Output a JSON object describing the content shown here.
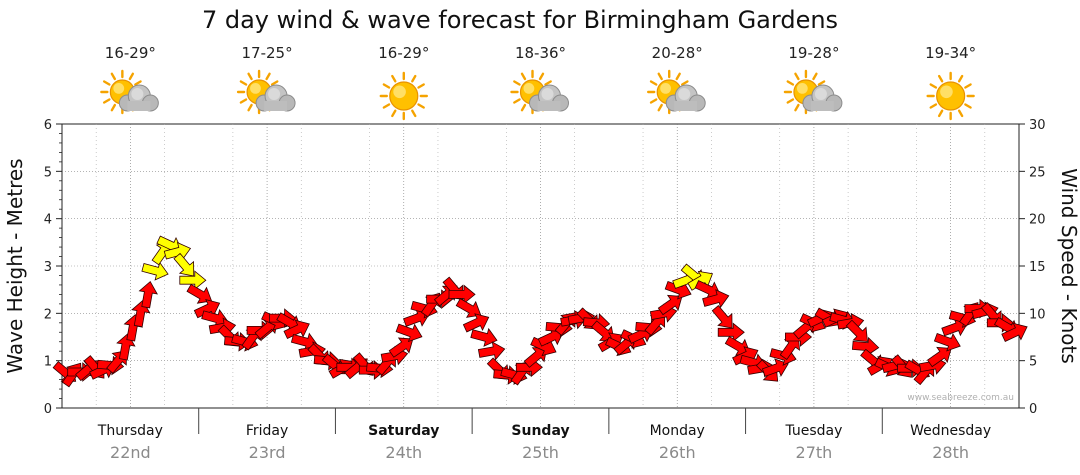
{
  "chart_data": {
    "type": "scatter",
    "title": "7 day wind & wave forecast for Birmingham Gardens",
    "ylabel_left": "Wave Height - Metres",
    "ylabel_right": "Wind Speed - Knots",
    "ylim_left": [
      0,
      6
    ],
    "ylim_right": [
      0,
      30
    ],
    "left_ticks": [
      "0",
      "1",
      "2",
      "3",
      "4",
      "5",
      "6"
    ],
    "right_ticks": [
      "0",
      "5",
      "10",
      "15",
      "20",
      "25",
      "30"
    ],
    "grid": true,
    "watermark": "www.seabreeze.com.au",
    "days": [
      {
        "name": "Thursday",
        "date": "22nd",
        "temp": "16-29°",
        "icon": "partly-cloudy-icon",
        "bold": false
      },
      {
        "name": "Friday",
        "date": "23rd",
        "temp": "17-25°",
        "icon": "partly-cloudy-icon",
        "bold": false
      },
      {
        "name": "Saturday",
        "date": "24th",
        "temp": "16-29°",
        "icon": "sunny-icon",
        "bold": true
      },
      {
        "name": "Sunday",
        "date": "25th",
        "temp": "18-36°",
        "icon": "partly-cloudy-icon",
        "bold": true
      },
      {
        "name": "Monday",
        "date": "26th",
        "temp": "20-28°",
        "icon": "partly-cloudy-icon",
        "bold": false
      },
      {
        "name": "Tuesday",
        "date": "27th",
        "temp": "19-28°",
        "icon": "partly-cloudy-icon",
        "bold": false
      },
      {
        "name": "Wednesday",
        "date": "28th",
        "temp": "19-34°",
        "icon": "sunny-icon",
        "bold": false
      }
    ],
    "arrow_colors": {
      "strong": "#ff0000",
      "moderate": "#ffff00"
    },
    "yellow_threshold_knots": 13,
    "wind_knots": [
      3.7,
      3.6,
      3.8,
      4.1,
      4.2,
      4.0,
      4.5,
      5.0,
      6.5,
      8.5,
      10,
      12,
      14.5,
      16.5,
      17.2,
      16.5,
      15,
      13.5,
      12,
      10.5,
      9.5,
      8.5,
      7.5,
      7.0,
      7.0,
      7.5,
      8.2,
      8.5,
      9.2,
      9.5,
      9.0,
      8.3,
      7.0,
      6.0,
      5.5,
      5.0,
      4.5,
      4.2,
      4.3,
      4.3,
      4.5,
      4.0,
      4.2,
      4.8,
      5.5,
      6.5,
      8.0,
      9.5,
      10.5,
      11.0,
      11.5,
      12.0,
      12.5,
      12.0,
      10.5,
      9.0,
      7.5,
      6.0,
      4.0,
      3.5,
      3.5,
      3.8,
      4.3,
      5.5,
      6.5,
      7.5,
      8.5,
      9.0,
      9.3,
      9.5,
      9.3,
      9.0,
      8.0,
      7.0,
      6.5,
      6.8,
      7.3,
      7.8,
      8.5,
      9.0,
      10.0,
      11.0,
      12.5,
      13.5,
      14.0,
      13.5,
      12.5,
      11.5,
      9.5,
      8.0,
      6.5,
      5.5,
      4.8,
      4.2,
      3.8,
      4.2,
      5.5,
      6.5,
      7.5,
      8.5,
      9.0,
      9.5,
      9.5,
      9.5,
      9.3,
      9.0,
      8.0,
      6.5,
      5.0,
      4.5,
      4.3,
      4.5,
      4.3,
      4.2,
      4.0,
      3.8,
      4.5,
      5.5,
      7.0,
      8.5,
      9.5,
      10.0,
      10.5,
      10.2,
      9.8,
      9.0,
      8.5,
      8.0
    ]
  }
}
